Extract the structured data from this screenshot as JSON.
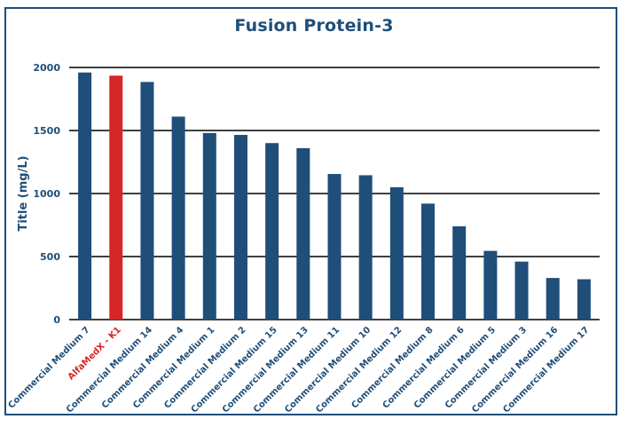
{
  "chart_data": {
    "type": "bar",
    "title": "Fusion Protein-3",
    "xlabel": "",
    "ylabel": "Title (mg/L)",
    "ylim": [
      0,
      2000
    ],
    "yticks": [
      0,
      500,
      1000,
      1500,
      2000
    ],
    "grid": true,
    "legend": "none",
    "categories": [
      "Commercial Medium 7",
      "AlfaMedX - K1",
      "Commercial Medium 14",
      "Commercial Medium 4",
      "Commercial Medium 1",
      "Commercial Medium 2",
      "Commercial Medium 15",
      "Commercial Medium 13",
      "Commercial Medium 11",
      "Commercial Medium 10",
      "Commercial Medium 12",
      "Commercial Medium 8",
      "Commercial Medium 6",
      "Commercial Medium 5",
      "Commercial Medium 3",
      "Commercial Medium 16",
      "Commercial Medium 17"
    ],
    "values": [
      1960,
      1935,
      1885,
      1610,
      1480,
      1465,
      1400,
      1360,
      1155,
      1145,
      1050,
      920,
      740,
      545,
      460,
      330,
      320
    ],
    "highlight_index": 1
  },
  "colors": {
    "bar": "#1f4e79",
    "highlight": "#d62728",
    "title": "#1f4e79",
    "axis_text": "#1f4e79",
    "grid": "#000000",
    "frame": "#1f4e79"
  }
}
